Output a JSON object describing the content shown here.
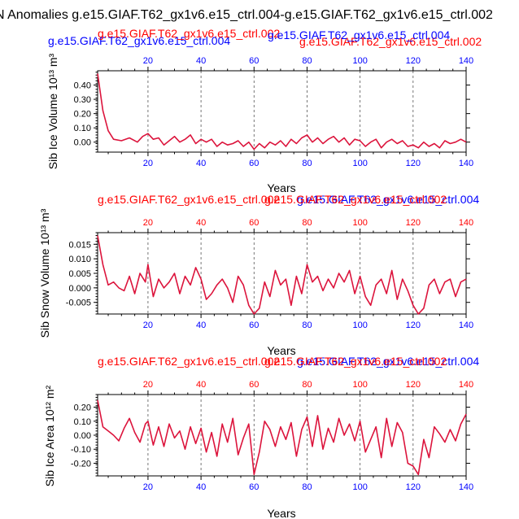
{
  "title": "N Anomalies g.e15.GIAF.T62_gx1v6.e15_ctrl.004-g.e15.GIAF.T62_gx1v6.e15_ctrl.002",
  "colors": {
    "blue": "#0000ff",
    "red": "#ff0000",
    "series": "#dc143c",
    "black": "#000000"
  },
  "chart_data": [
    {
      "type": "line",
      "ylabel": "Sib Ice Volume 10¹³ m³",
      "xlabel": "Years",
      "case_left": "g.e15.GIAF.T62_gx1v6.e15_ctrl.004",
      "case_left_color": "blue",
      "case_right": "g.e15.GIAF.T62_gx1v6.e15_ctrl.002",
      "case_right_color": "red",
      "case_mid_top": "g.e15.GIAF.T62_gx1v6.e15_ctrl.002",
      "case_mid_top_color": "red",
      "case_mid_bottom": "g.e15.GIAF.T62_gx1v6.e15_ctrl.004",
      "case_mid_bottom_color": "blue",
      "top_axis_color": "blue",
      "bottom_axis_color": "blue",
      "top_tick_labels": [
        "20",
        "40",
        "60",
        "80",
        "100",
        "120",
        "140"
      ],
      "bottom_tick_labels": [
        "20",
        "40",
        "60",
        "80",
        "100",
        "120",
        "140"
      ],
      "xlim": [
        1,
        140
      ],
      "ylim": [
        -0.07,
        0.5
      ],
      "yticks": [
        0.4,
        0.3,
        0.2,
        0.1,
        0.0
      ],
      "ytick_labels": [
        "0.40",
        "0.30",
        "0.20",
        "0.10",
        "0.00"
      ],
      "grid_x": [
        20,
        40,
        60,
        80,
        100,
        120
      ],
      "x": [
        1,
        3,
        5,
        7,
        10,
        13,
        16,
        18,
        20,
        22,
        24,
        26,
        28,
        30,
        32,
        34,
        36,
        38,
        40,
        42,
        44,
        46,
        48,
        50,
        52,
        54,
        56,
        58,
        60,
        62,
        64,
        66,
        68,
        70,
        72,
        74,
        76,
        78,
        80,
        82,
        84,
        86,
        88,
        90,
        92,
        94,
        96,
        98,
        100,
        102,
        104,
        106,
        108,
        110,
        112,
        114,
        116,
        118,
        120,
        122,
        124,
        126,
        128,
        130,
        132,
        134,
        136,
        138,
        140
      ],
      "values": [
        0.48,
        0.22,
        0.08,
        0.02,
        0.01,
        0.03,
        0.0,
        0.04,
        0.06,
        0.02,
        0.03,
        -0.02,
        0.01,
        0.04,
        0.0,
        0.02,
        0.05,
        -0.01,
        0.02,
        0.0,
        0.02,
        -0.03,
        0.0,
        -0.02,
        -0.01,
        0.01,
        -0.03,
        0.0,
        -0.05,
        -0.01,
        -0.04,
        0.0,
        -0.02,
        0.01,
        -0.03,
        0.02,
        -0.01,
        0.03,
        0.05,
        0.0,
        0.03,
        -0.01,
        0.02,
        0.04,
        0.0,
        0.03,
        -0.02,
        0.02,
        0.01,
        -0.03,
        0.0,
        0.02,
        -0.04,
        0.0,
        0.02,
        -0.01,
        0.01,
        -0.03,
        -0.02,
        -0.04,
        0.0,
        -0.03,
        -0.01,
        -0.04,
        0.01,
        -0.01,
        0.0,
        0.02,
        0.0
      ]
    },
    {
      "type": "line",
      "ylabel": "Sib Snow Volume 10¹³ m³",
      "xlabel": "Years",
      "case_left": "g.e15.GIAF.T62_gx1v6.e15_ctrl.002",
      "case_left_color": "red",
      "case_right": "g.e15.GIAF.T62_gx1v6.e15_ctrl.004",
      "case_right_color": "blue",
      "case_mid": "g.e15.GIAF.T62_gx1v6.e15_ctrl.002",
      "case_mid_color": "red",
      "top_axis_color": "red",
      "bottom_axis_color": "blue",
      "top_tick_labels": [
        "20",
        "40",
        "60",
        "80",
        "100",
        "120",
        "140"
      ],
      "bottom_tick_labels": [
        "20",
        "40",
        "60",
        "80",
        "100",
        "120",
        "140"
      ],
      "xlim": [
        1,
        140
      ],
      "ylim": [
        -0.009,
        0.019
      ],
      "yticks": [
        0.015,
        0.01,
        0.005,
        0.0,
        -0.005
      ],
      "ytick_labels": [
        "0.015",
        "0.010",
        "0.005",
        "0.000",
        "-0.005"
      ],
      "grid_x": [
        20,
        40,
        60,
        80,
        100,
        120
      ],
      "x": [
        1,
        3,
        5,
        7,
        9,
        11,
        13,
        15,
        17,
        19,
        20,
        22,
        24,
        26,
        28,
        30,
        32,
        34,
        36,
        38,
        40,
        42,
        44,
        46,
        48,
        50,
        52,
        54,
        56,
        58,
        60,
        62,
        64,
        66,
        68,
        70,
        72,
        74,
        76,
        78,
        80,
        82,
        84,
        86,
        88,
        90,
        92,
        94,
        96,
        98,
        100,
        102,
        104,
        106,
        108,
        110,
        112,
        114,
        116,
        118,
        120,
        122,
        124,
        126,
        128,
        130,
        132,
        134,
        136,
        138,
        140
      ],
      "values": [
        0.018,
        0.008,
        0.001,
        0.002,
        0.0,
        -0.001,
        0.004,
        -0.002,
        0.005,
        0.002,
        0.008,
        -0.003,
        0.003,
        0.0,
        0.002,
        0.005,
        -0.002,
        0.004,
        0.001,
        0.007,
        0.003,
        -0.004,
        -0.002,
        0.001,
        0.003,
        0.0,
        -0.005,
        0.004,
        0.001,
        -0.006,
        -0.009,
        -0.007,
        0.002,
        -0.003,
        0.006,
        0.001,
        0.003,
        -0.006,
        0.004,
        -0.002,
        0.008,
        0.002,
        0.004,
        -0.001,
        0.003,
        0.0,
        0.005,
        0.002,
        0.006,
        -0.002,
        0.004,
        -0.003,
        -0.006,
        0.001,
        0.003,
        -0.002,
        0.006,
        -0.004,
        0.003,
        -0.001,
        -0.006,
        -0.009,
        -0.007,
        0.001,
        0.003,
        -0.002,
        0.002,
        0.003,
        -0.003,
        0.002,
        0.003
      ]
    },
    {
      "type": "line",
      "ylabel": "Sib Ice Area 10¹² m²",
      "xlabel": "Years",
      "case_left": "g.e15.GIAF.T62_gx1v6.e15_ctrl.002",
      "case_left_color": "red",
      "case_right": "g.e15.GIAF.T62_gx1v6.e15_ctrl.004",
      "case_right_color": "blue",
      "case_mid": "g.e15.GIAF.T62_gx1v6.e15_ctrl.002",
      "case_mid_color": "red",
      "top_axis_color": "red",
      "bottom_axis_color": "blue",
      "top_tick_labels": [
        "20",
        "40",
        "60",
        "80",
        "100",
        "120",
        "140"
      ],
      "bottom_tick_labels": [
        "20",
        "40",
        "60",
        "80",
        "100",
        "120",
        "140"
      ],
      "xlim": [
        1,
        140
      ],
      "ylim": [
        -0.29,
        0.29
      ],
      "yticks": [
        0.2,
        0.1,
        0.0,
        -0.1,
        -0.2
      ],
      "ytick_labels": [
        "0.20",
        "0.10",
        "0.00",
        "-0.10",
        "-0.20"
      ],
      "grid_x": [
        20,
        40,
        60,
        80,
        100,
        120
      ],
      "x": [
        1,
        3,
        5,
        7,
        9,
        11,
        13,
        15,
        17,
        19,
        20,
        22,
        24,
        26,
        28,
        30,
        32,
        34,
        36,
        38,
        40,
        42,
        44,
        46,
        48,
        50,
        52,
        54,
        56,
        58,
        60,
        62,
        64,
        66,
        68,
        70,
        72,
        74,
        76,
        78,
        80,
        82,
        84,
        86,
        88,
        90,
        92,
        94,
        96,
        98,
        100,
        102,
        104,
        106,
        108,
        110,
        112,
        114,
        116,
        118,
        120,
        122,
        124,
        126,
        128,
        130,
        132,
        134,
        136,
        138,
        140
      ],
      "values": [
        0.25,
        0.06,
        0.03,
        0.0,
        -0.04,
        0.05,
        0.12,
        0.02,
        -0.05,
        0.08,
        0.1,
        -0.07,
        0.06,
        -0.08,
        0.08,
        -0.02,
        0.03,
        -0.1,
        0.06,
        -0.06,
        0.05,
        -0.12,
        0.02,
        -0.15,
        0.08,
        -0.05,
        0.12,
        -0.14,
        -0.02,
        0.08,
        -0.28,
        -0.12,
        0.1,
        0.04,
        -0.08,
        0.06,
        -0.03,
        0.09,
        -0.15,
        0.04,
        0.13,
        -0.08,
        0.14,
        -0.1,
        0.05,
        -0.05,
        0.12,
        0.0,
        0.08,
        -0.04,
        0.1,
        -0.12,
        -0.03,
        0.06,
        -0.16,
        0.12,
        -0.08,
        0.09,
        0.02,
        -0.2,
        -0.22,
        -0.28,
        -0.03,
        -0.16,
        0.06,
        0.01,
        -0.05,
        0.04,
        -0.04,
        0.08,
        0.15
      ]
    }
  ]
}
